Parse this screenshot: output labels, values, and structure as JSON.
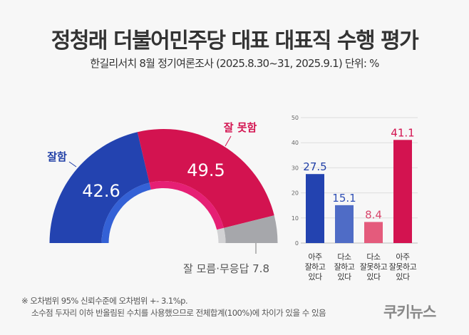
{
  "title": "정청래 더불어민주당 대표 대표직 수행 평가",
  "subtitle": "한길리서치 8월 정기여론조사 (2025.8.30~31, 2025.9.1) 단위: %",
  "notes": [
    "※ 오차범위 95% 신뢰수준에 오차범위 +- 3.1%p.",
    "소수점 두자리 이하 반올림된 수치를 사용했으므로 전체합계(100%)에 차이가 있을 수 있음"
  ],
  "logo": "쿠키뉴스",
  "chart_data": [
    {
      "type": "pie",
      "subtype": "half-donut",
      "slices": [
        {
          "label": "잘함",
          "value": 42.6,
          "color": "#2343b0",
          "inner_color": "#3461d6",
          "label_color": "#1f3ea6"
        },
        {
          "label": "잘 못함",
          "value": 49.5,
          "color": "#d31350",
          "inner_color": "#e61f74",
          "label_color": "#d31350"
        },
        {
          "label": "잘 모름·무응답",
          "value": 7.8,
          "color": "#a6a7ab",
          "inner_color": "#d2d2d4",
          "label_color": "#555555"
        }
      ]
    },
    {
      "type": "bar",
      "categories": [
        [
          "아주",
          "잘하고",
          "있다"
        ],
        [
          "다소",
          "잘하고",
          "있다"
        ],
        [
          "다소",
          "잘못하고",
          "있다"
        ],
        [
          "아주",
          "잘못하고",
          "있다"
        ]
      ],
      "values": [
        27.5,
        15.1,
        8.4,
        41.1
      ],
      "colors": [
        "#2343b0",
        "#4f6cc6",
        "#e45b7c",
        "#d31350"
      ],
      "label_colors": [
        "#1f3ea6",
        "#2f4fb5",
        "#d8456b",
        "#d31350"
      ],
      "ylim": [
        0,
        50
      ],
      "yticks": [
        0,
        10,
        20,
        30,
        40,
        50
      ],
      "grid": true
    }
  ]
}
